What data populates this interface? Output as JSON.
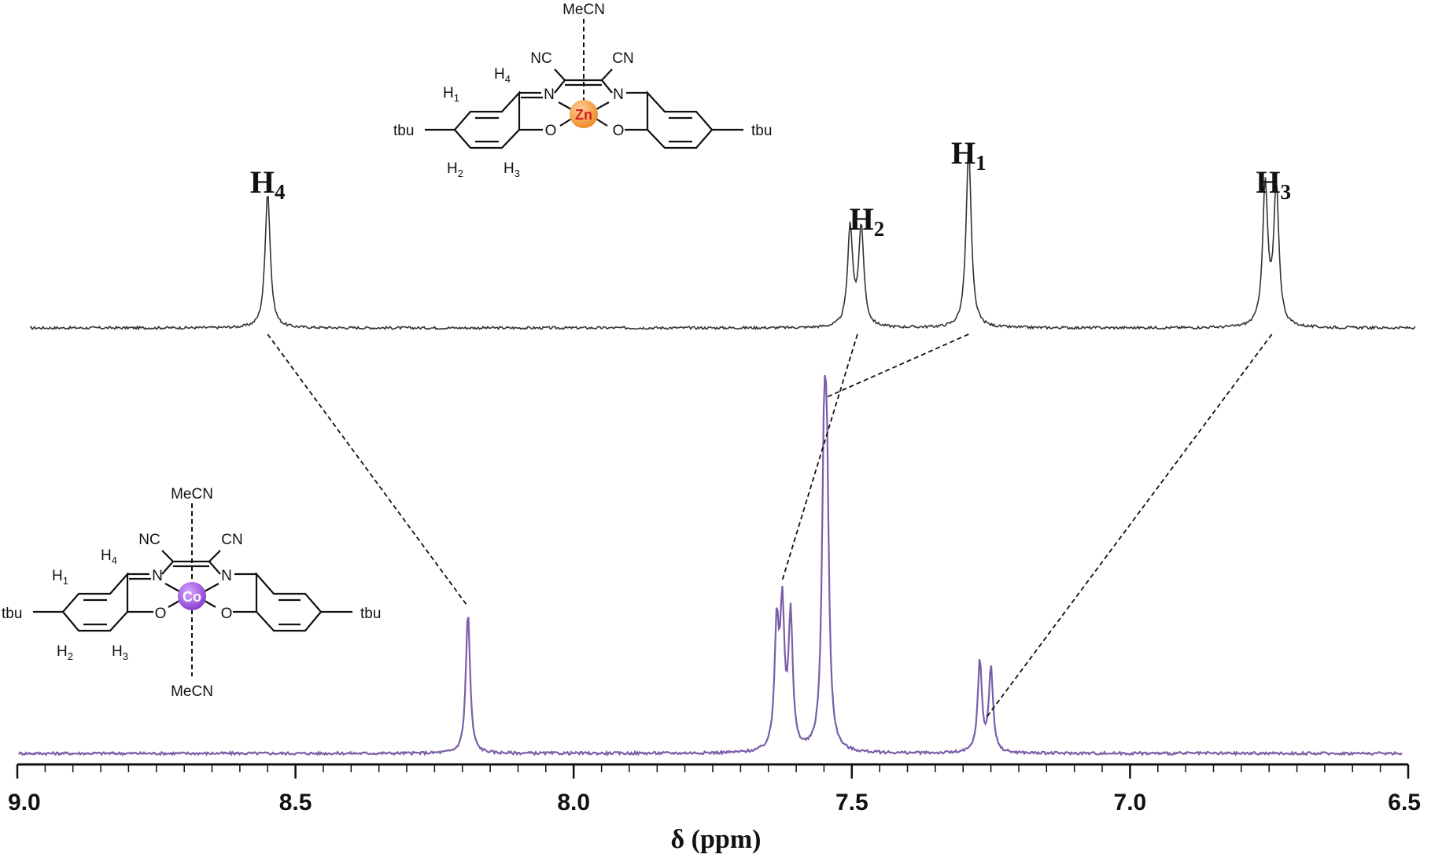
{
  "chart_data": {
    "type": "line",
    "title": "",
    "xlabel": "δ (ppm)",
    "ylabel": "",
    "xlim": [
      9.0,
      6.5
    ],
    "x_reversed": true,
    "x_ticks": [
      "9.0",
      "8.5",
      "8.0",
      "7.5",
      "7.0",
      "6.5"
    ],
    "grid": false,
    "series": [
      {
        "name": "",
        "color": "#333333",
        "peaks": [
          {
            "ppm": 8.55,
            "height": 0.62
          },
          {
            "ppm": 7.503,
            "height": 0.45
          },
          {
            "ppm": 7.483,
            "height": 0.45
          },
          {
            "ppm": 7.29,
            "height": 0.82
          },
          {
            "ppm": 6.757,
            "height": 0.64
          },
          {
            "ppm": 6.737,
            "height": 0.63
          }
        ],
        "noise": 0.012
      },
      {
        "name": "",
        "color": "#7a5ea8",
        "peaks": [
          {
            "ppm": 8.19,
            "height": 0.42
          },
          {
            "ppm": 7.635,
            "height": 0.36
          },
          {
            "ppm": 7.625,
            "height": 0.4
          },
          {
            "ppm": 7.61,
            "height": 0.39
          },
          {
            "ppm": 7.55,
            "height": 0.75
          },
          {
            "ppm": 7.545,
            "height": 0.7
          },
          {
            "ppm": 7.27,
            "height": 0.27
          },
          {
            "ppm": 7.25,
            "height": 0.25
          }
        ],
        "noise": 0.008
      }
    ],
    "annotations": [
      {
        "label": "H",
        "sub": "4",
        "ppm": 8.55
      },
      {
        "label": "H",
        "sub": "2",
        "ppm": 7.49
      },
      {
        "label": "H",
        "sub": "1",
        "ppm": 7.29
      },
      {
        "label": "H",
        "sub": "3",
        "ppm": 6.745
      }
    ],
    "correlations": [
      {
        "from_ppm": 8.55,
        "to_ppm": 8.19
      },
      {
        "from_ppm": 7.49,
        "to_ppm": 7.625
      },
      {
        "from_ppm": 7.29,
        "to_ppm": 7.545
      },
      {
        "from_ppm": 6.745,
        "to_ppm": 7.26
      }
    ]
  },
  "structures": {
    "zinc": {
      "metal": "Zn",
      "metal_color": "#f39a3c",
      "metal_text_color": "#d6201f",
      "axial_top": "MeCN",
      "nc_left": "NC",
      "cn_right": "CN",
      "h4": "H",
      "h4_sub": "4",
      "h1": "H",
      "h1_sub": "1",
      "h2": "H",
      "h2_sub": "2",
      "h3": "H",
      "h3_sub": "3",
      "n_left": "N",
      "n_right": "N",
      "o_left": "O",
      "o_right": "O",
      "tbu_left": "tbu",
      "tbu_right": "tbu"
    },
    "cobalt": {
      "metal": "Co",
      "metal_color": "#9b4fd6",
      "metal_text_color": "#ffffff",
      "axial_top": "MeCN",
      "axial_bottom": "MeCN",
      "nc_left": "NC",
      "cn_right": "CN",
      "h4": "H",
      "h4_sub": "4",
      "h1": "H",
      "h1_sub": "1",
      "h2": "H",
      "h2_sub": "2",
      "h3": "H",
      "h3_sub": "3",
      "n_left": "N",
      "n_right": "N",
      "o_left": "O",
      "o_right": "O",
      "tbu_left": "tbu",
      "tbu_right": "tbu"
    }
  }
}
